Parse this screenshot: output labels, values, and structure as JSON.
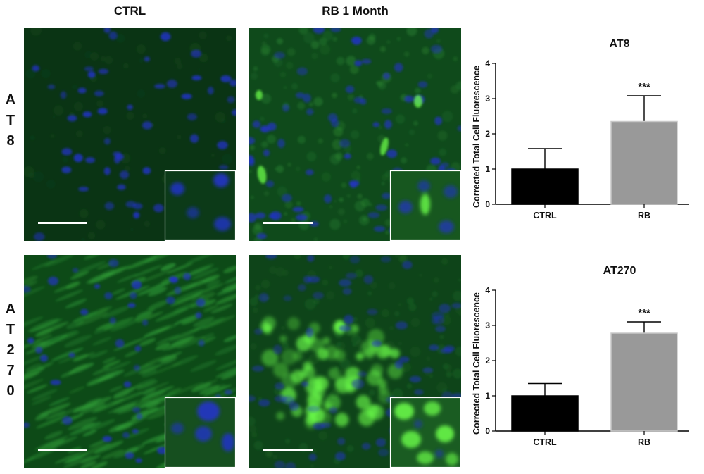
{
  "column_headers": [
    "CTRL",
    "RB 1 Month"
  ],
  "row_labels": [
    {
      "id": "at8",
      "letters": [
        "A",
        "T",
        "8"
      ]
    },
    {
      "id": "at270",
      "letters": [
        "A",
        "T",
        "2",
        "7",
        "0"
      ]
    }
  ],
  "colors": {
    "ctrl_bar": "#000000",
    "rb_bar": "#999999",
    "tissue_dark": "#0b3a14",
    "tissue_green": "#1f7a2a",
    "nucleus_blue": "#2233c8",
    "signal_green": "#6cff4a",
    "scale_bar": "#ffffff"
  },
  "chart_data": [
    {
      "type": "bar",
      "title": "AT8",
      "ylabel": "Corrected Total Cell Fluorescence",
      "categories": [
        "CTRL",
        "RB"
      ],
      "values": [
        1.0,
        2.35
      ],
      "error": [
        0.58,
        0.73
      ],
      "significance": [
        "",
        "***"
      ],
      "ylim": [
        0,
        4
      ],
      "yticks": [
        "0",
        "1",
        "2",
        "3",
        "4"
      ]
    },
    {
      "type": "bar",
      "title": "AT270",
      "ylabel": "Corrected Total Cell Fluorescence",
      "categories": [
        "CTRL",
        "RB"
      ],
      "values": [
        1.0,
        2.78
      ],
      "error": [
        0.35,
        0.32
      ],
      "significance": [
        "",
        "***"
      ],
      "ylim": [
        0,
        4
      ],
      "yticks": [
        "0",
        "1",
        "2",
        "3",
        "4"
      ]
    }
  ]
}
